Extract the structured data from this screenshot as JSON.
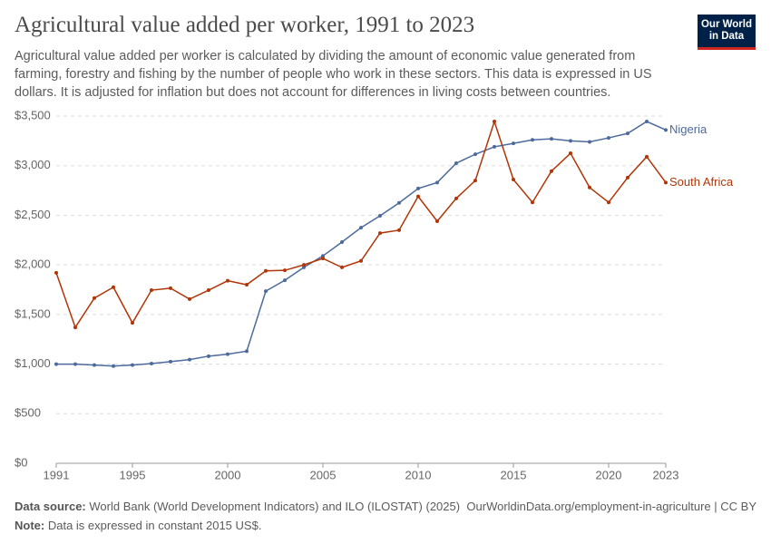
{
  "chart_data": {
    "type": "line",
    "title": "Agricultural value added per worker, 1991 to 2023",
    "subtitle": "Agricultural value added per worker is calculated by dividing the amount of economic value generated from farming, forestry and fishing by the number of people who work in these sectors. This data is expressed in US dollars. It is adjusted for inflation but does not account for differences in living costs between countries.",
    "x": [
      1991,
      1992,
      1993,
      1994,
      1995,
      1996,
      1997,
      1998,
      1999,
      2000,
      2001,
      2002,
      2003,
      2004,
      2005,
      2006,
      2007,
      2008,
      2009,
      2010,
      2011,
      2012,
      2013,
      2014,
      2015,
      2016,
      2017,
      2018,
      2019,
      2020,
      2021,
      2022,
      2023
    ],
    "series": [
      {
        "name": "Nigeria",
        "color": "#4c6a9c",
        "values": [
          1000,
          1000,
          990,
          980,
          990,
          1005,
          1025,
          1045,
          1080,
          1100,
          1130,
          1735,
          1845,
          1975,
          2090,
          2230,
          2375,
          2495,
          2625,
          2770,
          2830,
          3025,
          3115,
          3190,
          3225,
          3260,
          3270,
          3250,
          3240,
          3280,
          3325,
          3445,
          3360
        ]
      },
      {
        "name": "South Africa",
        "color": "#b13507",
        "values": [
          1920,
          1370,
          1665,
          1775,
          1415,
          1745,
          1765,
          1655,
          1745,
          1840,
          1800,
          1940,
          1945,
          2000,
          2065,
          1975,
          2040,
          2320,
          2350,
          2690,
          2440,
          2670,
          2850,
          3445,
          2860,
          2630,
          2945,
          3125,
          2780,
          2630,
          2880,
          3090,
          2830
        ]
      }
    ],
    "xlim": [
      1991,
      2023
    ],
    "xticks": [
      1991,
      1995,
      2000,
      2005,
      2010,
      2015,
      2020,
      2023
    ],
    "ylim": [
      0,
      3500
    ],
    "yticks": [
      {
        "value": 0,
        "label": "$0"
      },
      {
        "value": 500,
        "label": "$500"
      },
      {
        "value": 1000,
        "label": "$1,000"
      },
      {
        "value": 1500,
        "label": "$1,500"
      },
      {
        "value": 2000,
        "label": "$2,000"
      },
      {
        "value": 2500,
        "label": "$2,500"
      },
      {
        "value": 3000,
        "label": "$3,000"
      },
      {
        "value": 3500,
        "label": "$3,500"
      }
    ],
    "grid": true
  },
  "logo": {
    "line1": "Our World",
    "line2": "in Data"
  },
  "footer": {
    "source_label": "Data source:",
    "source": "World Bank (World Development Indicators) and ILO (ILOSTAT) (2025)",
    "url": "OurWorldinData.org/employment-in-agriculture | CC BY",
    "note_label": "Note:",
    "note": "Data is expressed in constant 2015 US$."
  }
}
